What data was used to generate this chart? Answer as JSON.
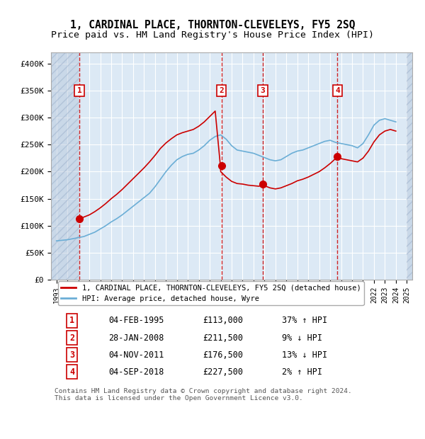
{
  "title": "1, CARDINAL PLACE, THORNTON-CLEVELEYS, FY5 2SQ",
  "subtitle": "Price paid vs. HM Land Registry's House Price Index (HPI)",
  "ylabel": "",
  "background_color": "#ffffff",
  "plot_bg_color": "#dce9f5",
  "hatch_color": "#c0d0e8",
  "grid_color": "#ffffff",
  "sale_dates": [
    "1995-02-04",
    "2008-01-28",
    "2011-11-04",
    "2018-09-04"
  ],
  "sale_prices": [
    113000,
    211500,
    176500,
    227500
  ],
  "sale_labels": [
    "1",
    "2",
    "3",
    "4"
  ],
  "sale_label_dates": [
    1995.09,
    2007.97,
    2011.85,
    2018.67
  ],
  "sale_color": "#cc0000",
  "hpi_color": "#6baed6",
  "ylim": [
    0,
    420000
  ],
  "xlim_start": 1992.5,
  "xlim_end": 2025.5,
  "yticks": [
    0,
    50000,
    100000,
    150000,
    200000,
    250000,
    300000,
    350000,
    400000
  ],
  "ytick_labels": [
    "£0",
    "£50K",
    "£100K",
    "£150K",
    "£200K",
    "£250K",
    "£300K",
    "£350K",
    "£400K"
  ],
  "xtick_years": [
    1993,
    1994,
    1995,
    1996,
    1997,
    1998,
    1999,
    2000,
    2001,
    2002,
    2003,
    2004,
    2005,
    2006,
    2007,
    2008,
    2009,
    2010,
    2011,
    2012,
    2013,
    2014,
    2015,
    2016,
    2017,
    2018,
    2019,
    2020,
    2021,
    2022,
    2023,
    2024,
    2025
  ],
  "legend_line1": "1, CARDINAL PLACE, THORNTON-CLEVELEYS, FY5 2SQ (detached house)",
  "legend_line2": "HPI: Average price, detached house, Wyre",
  "table_rows": [
    {
      "num": "1",
      "date": "04-FEB-1995",
      "price": "£113,000",
      "pct": "37% ↑ HPI"
    },
    {
      "num": "2",
      "date": "28-JAN-2008",
      "price": "£211,500",
      "pct": "9% ↓ HPI"
    },
    {
      "num": "3",
      "date": "04-NOV-2011",
      "price": "£176,500",
      "pct": "13% ↓ HPI"
    },
    {
      "num": "4",
      "date": "04-SEP-2018",
      "price": "£227,500",
      "pct": "2% ↑ HPI"
    }
  ],
  "footer": "Contains HM Land Registry data © Crown copyright and database right 2024.\nThis data is licensed under the Open Government Licence v3.0.",
  "hpi_curve": {
    "years": [
      1993.0,
      1993.5,
      1994.0,
      1994.5,
      1995.0,
      1995.5,
      1996.0,
      1996.5,
      1997.0,
      1997.5,
      1998.0,
      1998.5,
      1999.0,
      1999.5,
      2000.0,
      2000.5,
      2001.0,
      2001.5,
      2002.0,
      2002.5,
      2003.0,
      2003.5,
      2004.0,
      2004.5,
      2005.0,
      2005.5,
      2006.0,
      2006.5,
      2007.0,
      2007.5,
      2008.0,
      2008.5,
      2009.0,
      2009.5,
      2010.0,
      2010.5,
      2011.0,
      2011.5,
      2012.0,
      2012.5,
      2013.0,
      2013.5,
      2014.0,
      2014.5,
      2015.0,
      2015.5,
      2016.0,
      2016.5,
      2017.0,
      2017.5,
      2018.0,
      2018.5,
      2019.0,
      2019.5,
      2020.0,
      2020.5,
      2021.0,
      2021.5,
      2022.0,
      2022.5,
      2023.0,
      2023.5,
      2024.0
    ],
    "values": [
      72000,
      73000,
      74000,
      76000,
      78000,
      80000,
      84000,
      88000,
      94000,
      100000,
      107000,
      113000,
      120000,
      128000,
      136000,
      144000,
      152000,
      160000,
      172000,
      186000,
      200000,
      212000,
      222000,
      228000,
      232000,
      234000,
      240000,
      248000,
      258000,
      265000,
      268000,
      260000,
      248000,
      240000,
      238000,
      236000,
      234000,
      230000,
      226000,
      222000,
      220000,
      222000,
      228000,
      234000,
      238000,
      240000,
      244000,
      248000,
      252000,
      256000,
      258000,
      254000,
      252000,
      250000,
      248000,
      244000,
      252000,
      268000,
      286000,
      295000,
      298000,
      295000,
      292000
    ]
  },
  "price_curve": {
    "years": [
      1995.09,
      1995.2,
      1995.5,
      1996.0,
      1996.5,
      1997.0,
      1997.5,
      1998.0,
      1998.5,
      1999.0,
      1999.5,
      2000.0,
      2000.5,
      2001.0,
      2001.5,
      2002.0,
      2002.5,
      2003.0,
      2003.5,
      2004.0,
      2004.5,
      2005.0,
      2005.5,
      2006.0,
      2006.5,
      2007.0,
      2007.5,
      2007.97,
      2008.0,
      2008.5,
      2009.0,
      2009.5,
      2010.0,
      2010.5,
      2011.0,
      2011.5,
      2011.85,
      2012.0,
      2012.5,
      2013.0,
      2013.5,
      2014.0,
      2014.5,
      2015.0,
      2015.5,
      2016.0,
      2016.5,
      2017.0,
      2017.5,
      2018.0,
      2018.67,
      2019.0,
      2019.5,
      2020.0,
      2020.5,
      2021.0,
      2021.5,
      2022.0,
      2022.5,
      2023.0,
      2023.5,
      2024.0
    ],
    "values": [
      113000,
      113500,
      116000,
      120000,
      126000,
      133000,
      141000,
      150000,
      158000,
      167000,
      177000,
      187000,
      197000,
      207000,
      218000,
      230000,
      243000,
      253000,
      261000,
      268000,
      272000,
      275000,
      278000,
      284000,
      292000,
      302000,
      312000,
      211500,
      200000,
      190000,
      182000,
      178000,
      177000,
      175000,
      174000,
      173000,
      176500,
      174000,
      170000,
      168000,
      170000,
      174000,
      178000,
      183000,
      186000,
      190000,
      195000,
      200000,
      207000,
      215000,
      227500,
      224000,
      222000,
      220000,
      218000,
      225000,
      238000,
      255000,
      268000,
      275000,
      278000,
      275000
    ]
  }
}
